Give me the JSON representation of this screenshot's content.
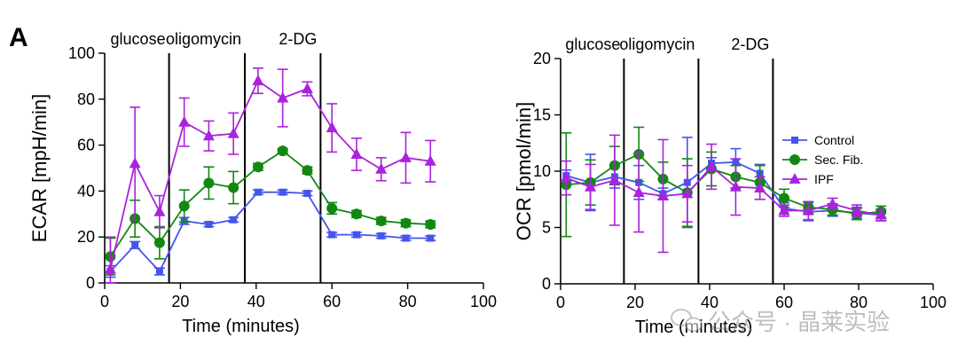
{
  "panel_label": "A",
  "watermark": {
    "text": "公众号 · 晶莱实验"
  },
  "colors": {
    "Control": "#4455ee",
    "Sec. Fib.": "#118811",
    "IPF": "#aa22dd",
    "axis": "#000000"
  },
  "chart_data": [
    {
      "type": "line",
      "xlabel": "Time (minutes)",
      "ylabel": "ECAR [mpH/min]",
      "xlim": [
        0,
        100
      ],
      "ylim": [
        0,
        100
      ],
      "xticks": [
        0,
        20,
        40,
        60,
        80,
        100
      ],
      "yticks": [
        0,
        20,
        40,
        60,
        80,
        100
      ],
      "legend": "none",
      "events": [
        {
          "label": "glucose",
          "x": 17
        },
        {
          "label": "oligomycin",
          "x": 37
        },
        {
          "label": "2-DG",
          "x": 57
        }
      ],
      "x": [
        1.5,
        8,
        14.5,
        21,
        27.5,
        34,
        40.5,
        47,
        53.5,
        60,
        66.5,
        73,
        79.5,
        86
      ],
      "series": [
        {
          "name": "Control",
          "marker": "square",
          "values": [
            5,
            16.5,
            5,
            27,
            25.5,
            27.5,
            39.5,
            39.5,
            39,
            21,
            21,
            20.5,
            19.5,
            19.5
          ],
          "errors": [
            2.5,
            1.5,
            1.5,
            1.5,
            1,
            1,
            1,
            1,
            1,
            1,
            1,
            1,
            1,
            1
          ]
        },
        {
          "name": "Sec. Fib.",
          "marker": "circle",
          "values": [
            11.5,
            28,
            17.5,
            33.5,
            43.5,
            41.5,
            50.5,
            57.5,
            49,
            32.5,
            30,
            27,
            26,
            25.5
          ],
          "errors": [
            8,
            8,
            7,
            7,
            7,
            7,
            1.5,
            1,
            1.5,
            2.5,
            1.5,
            1.5,
            1.5,
            1.5
          ]
        },
        {
          "name": "IPF",
          "marker": "triangle",
          "values": [
            6,
            52,
            31,
            70,
            64,
            65,
            88,
            80.5,
            84.5,
            67.5,
            56,
            49.5,
            54.5,
            53
          ],
          "errors": [
            14,
            24.5,
            7,
            10.5,
            6.5,
            9,
            5.5,
            12.5,
            3,
            10.5,
            7,
            5,
            11,
            9
          ]
        }
      ]
    },
    {
      "type": "line",
      "xlabel": "Time (minutes)",
      "ylabel": "OCR [pmol/min]",
      "xlim": [
        0,
        100
      ],
      "ylim": [
        0,
        20
      ],
      "xticks": [
        0,
        20,
        40,
        60,
        80,
        100
      ],
      "yticks": [
        0,
        5,
        10,
        15,
        20
      ],
      "legend": "right",
      "events": [
        {
          "label": "glucose",
          "x": 17
        },
        {
          "label": "oligomycin",
          "x": 37
        },
        {
          "label": "2-DG",
          "x": 57
        }
      ],
      "x": [
        1.5,
        8,
        14.5,
        21,
        27.5,
        34,
        40.5,
        47,
        53.5,
        60,
        66.5,
        73,
        79.5,
        86
      ],
      "series": [
        {
          "name": "Control",
          "marker": "square",
          "values": [
            9.6,
            9,
            9.5,
            9,
            8,
            9,
            10.7,
            10.8,
            9.8,
            6.7,
            6.4,
            6.5,
            6.3,
            6.1
          ],
          "errors": [
            0.5,
            2.5,
            1,
            1.5,
            0.5,
            4,
            0.5,
            1.2,
            0.8,
            0.5,
            0.8,
            0.5,
            0.5,
            0.5
          ]
        },
        {
          "name": "Sec. Fib.",
          "marker": "circle",
          "values": [
            8.8,
            9,
            10.5,
            11.5,
            9.3,
            8.1,
            10.2,
            9.5,
            9,
            7.6,
            6.8,
            6.6,
            6.2,
            6.4
          ],
          "errors": [
            4.6,
            2,
            1.7,
            2.4,
            1.5,
            3,
            1.5,
            1,
            1.5,
            0.8,
            0.5,
            0.5,
            0.5,
            0.5
          ]
        },
        {
          "name": "IPF",
          "marker": "triangle",
          "values": [
            9.4,
            8.6,
            9.2,
            8.1,
            7.8,
            8,
            10.4,
            8.6,
            8.5,
            6.5,
            6.5,
            7.1,
            6.5,
            6.1
          ],
          "errors": [
            1.5,
            2,
            4,
            3.5,
            5,
            2.5,
            2,
            2.5,
            1,
            0.5,
            0.8,
            0.5,
            0.5,
            0.5
          ]
        }
      ]
    }
  ]
}
